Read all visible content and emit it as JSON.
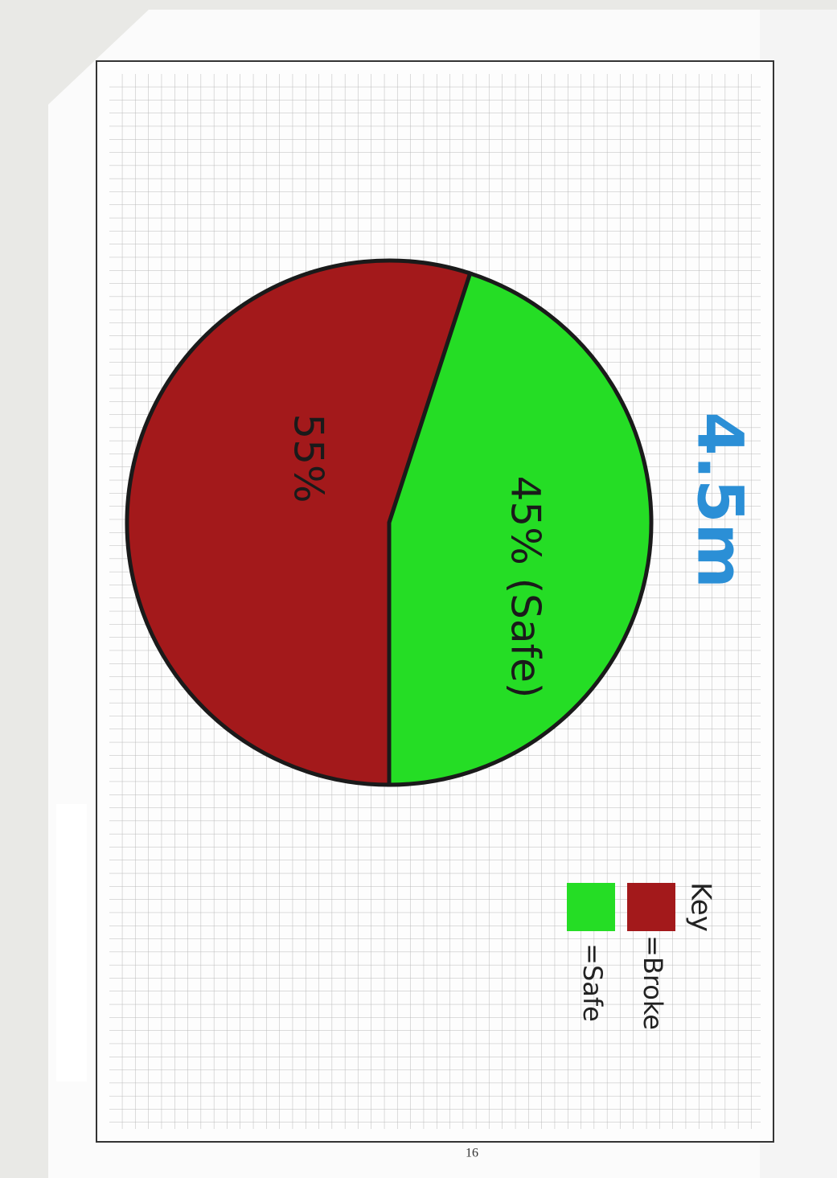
{
  "chart_data": {
    "type": "pie",
    "title": "4.5m",
    "legend_title": "Key",
    "categories": [
      "=Broke",
      "=Safe"
    ],
    "values": [
      55,
      45
    ],
    "value_labels": [
      "55%",
      "45% (Safe)"
    ],
    "colors": [
      "#a3191b",
      "#25dd25"
    ],
    "title_color": "#2b8fd6"
  },
  "page_number": "16"
}
